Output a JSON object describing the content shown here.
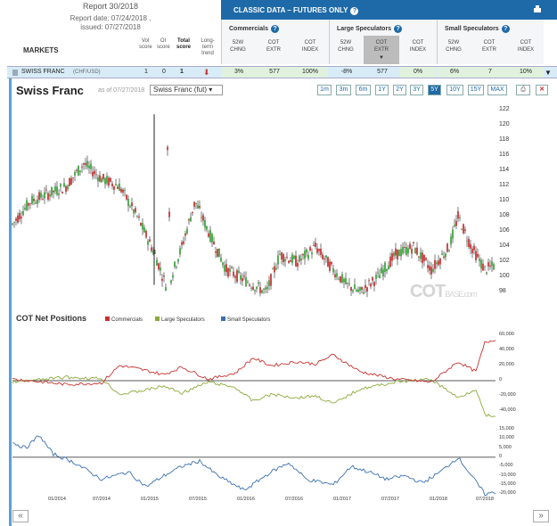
{
  "report": {
    "title": "Report 30/2018",
    "date": "Report date: 07/24/2018 ,",
    "issued": "issued: 07/27/2018"
  },
  "markets_header": "MARKETS",
  "score_headers": [
    "Vol score",
    "OI score",
    "Total score",
    "Long-term trend"
  ],
  "classic": {
    "title": "CLASSIC DATA – FUTURES ONLY"
  },
  "groups": [
    {
      "name": "Commercials",
      "cols": [
        "52W CHNG",
        "COT EXTR",
        "COT INDEX"
      ]
    },
    {
      "name": "Large Speculators",
      "cols": [
        "52W CHNG",
        "COT EXTR",
        "COT INDEX"
      ]
    },
    {
      "name": "Small Speculators",
      "cols": [
        "52W CHNG",
        "COT EXTR",
        "COT INDEX"
      ]
    }
  ],
  "row": {
    "name": "SWISS FRANC",
    "sub": "(CHF/USD)",
    "vol": "1",
    "oi": "0",
    "total": "1",
    "values": [
      "3%",
      "577",
      "100%",
      "-8%",
      "577",
      "0%",
      "6%",
      "7",
      "10%"
    ]
  },
  "chart": {
    "title": "Swiss Franc",
    "asof": "as of 07/27/2018",
    "select": "Swiss Franc (fut)",
    "ranges": [
      "1m",
      "3m",
      "6m",
      "1Y",
      "2Y",
      "3Y",
      "5Y",
      "10Y",
      "15Y",
      "MAX"
    ],
    "active": "5Y"
  },
  "price_axis": [
    "122",
    "120",
    "118",
    "116",
    "114",
    "112",
    "110",
    "108",
    "106",
    "104",
    "102",
    "100",
    "98"
  ],
  "cot": {
    "title": "COT Net Positions",
    "legend": [
      "Commercials",
      "Large Speculators",
      "Small Speculators"
    ],
    "colors": [
      "#c83030",
      "#8aaa3a",
      "#3a70b0"
    ]
  },
  "cot_axis1": [
    "60,000",
    "40,000",
    "20,000",
    "0",
    "-20,000",
    "-40,000"
  ],
  "cot_axis2": [
    "15,000",
    "10,000",
    "5,000",
    "0",
    "-5,000",
    "-10,000",
    "-15,000",
    "-20,000"
  ],
  "dates": [
    "01/2014",
    "07/2014",
    "01/2015",
    "07/2015",
    "01/2016",
    "07/2016",
    "01/2017",
    "07/2017",
    "01/2018",
    "07/2018"
  ],
  "watermark": {
    "a": "COT",
    "b": "BASE.com"
  }
}
